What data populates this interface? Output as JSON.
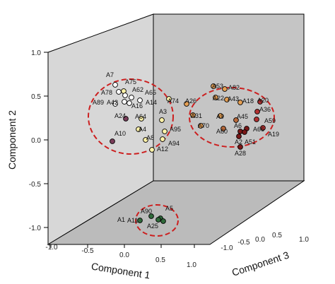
{
  "chart_data": {
    "type": "scatter",
    "xlabel": "Component 1",
    "ylabel": "Component 2",
    "zlabel": "Component 3",
    "xlim": [
      -1.0,
      1.0
    ],
    "ylim": [
      -1.0,
      1.0
    ],
    "zlim": [
      -1.0,
      1.0
    ],
    "y_ticks": [
      "1.0",
      "0.5",
      "0.0",
      "-0.5",
      "-1.0"
    ],
    "x_ticks": [
      "-1.0",
      "-0.5",
      "0.0",
      "0.5",
      "1.0"
    ],
    "z_ticks": [
      "0.0",
      "0.5",
      "1.0"
    ],
    "z_ticks_near": [
      "-1.0",
      "-0.5"
    ],
    "grid": false,
    "colors": {
      "back_wall": "#c5c5c5",
      "side_wall": "#d7d7d7",
      "floor": "#b9b9b9",
      "cluster_ellipse": "#cc1f1f",
      "white_pt": "#ffffff",
      "cream_pt": "#fff2a8",
      "orange_pt": "#e6a054",
      "brown_pt": "#b9693a",
      "red_pt": "#b33030",
      "darkred_pt": "#7a1818",
      "purple_pt": "#7a3d5a",
      "green_pt": "#2f6a3a"
    },
    "clusters": [
      {
        "name": "left",
        "points": [
          {
            "label": "A7",
            "color": "white_pt"
          },
          {
            "label": "A75",
            "color": "cream_pt"
          },
          {
            "label": "A78",
            "color": "white_pt"
          },
          {
            "label": "A62",
            "color": "white_pt"
          },
          {
            "label": "A65",
            "color": "white_pt"
          },
          {
            "label": "A89",
            "color": "white_pt"
          },
          {
            "label": "A42",
            "color": "white_pt"
          },
          {
            "label": "A16",
            "color": "white_pt"
          },
          {
            "label": "A14",
            "color": "white_pt"
          },
          {
            "label": "A74",
            "color": "cream_pt"
          },
          {
            "label": "A3",
            "color": "cream_pt"
          },
          {
            "label": "A24",
            "color": "purple_pt"
          },
          {
            "label": "A64",
            "color": "cream_pt"
          },
          {
            "label": "A4",
            "color": "cream_pt"
          },
          {
            "label": "A95",
            "color": "cream_pt"
          },
          {
            "label": "A10",
            "color": "purple_pt"
          },
          {
            "label": "A8",
            "color": "cream_pt"
          },
          {
            "label": "A94",
            "color": "cream_pt"
          },
          {
            "label": "A12",
            "color": "cream_pt"
          }
        ]
      },
      {
        "name": "right",
        "points": [
          {
            "label": "A53",
            "color": "orange_pt"
          },
          {
            "label": "A82",
            "color": "orange_pt"
          },
          {
            "label": "A26",
            "color": "orange_pt"
          },
          {
            "label": "A22",
            "color": "orange_pt"
          },
          {
            "label": "A43",
            "color": "orange_pt"
          },
          {
            "label": "A18",
            "color": "orange_pt"
          },
          {
            "label": "A20",
            "color": "red_pt"
          },
          {
            "label": "A36",
            "color": "red_pt"
          },
          {
            "label": "A31",
            "color": "orange_pt"
          },
          {
            "label": "A9",
            "color": "orange_pt"
          },
          {
            "label": "A45",
            "color": "brown_pt"
          },
          {
            "label": "A70",
            "color": "orange_pt"
          },
          {
            "label": "A59",
            "color": "red_pt"
          },
          {
            "label": "A60",
            "color": "brown_pt"
          },
          {
            "label": "A6",
            "color": "darkred_pt"
          },
          {
            "label": "A66",
            "color": "darkred_pt"
          },
          {
            "label": "A19",
            "color": "red_pt"
          },
          {
            "label": "A2",
            "color": "darkred_pt"
          },
          {
            "label": "A51",
            "color": "darkred_pt"
          },
          {
            "label": "A28",
            "color": "darkred_pt"
          }
        ]
      },
      {
        "name": "bottom",
        "points": [
          {
            "label": "A90",
            "color": "green_pt"
          },
          {
            "label": "A5",
            "color": "green_pt"
          },
          {
            "label": "A1",
            "color": "green_pt"
          },
          {
            "label": "A11",
            "color": "green_pt"
          },
          {
            "label": "A25",
            "color": "green_pt"
          }
        ]
      }
    ]
  }
}
